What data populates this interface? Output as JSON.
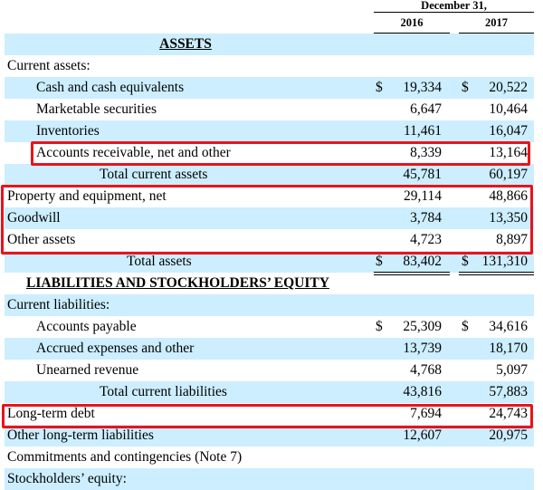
{
  "header": {
    "period": "December 31,",
    "years": [
      "2016",
      "2017"
    ]
  },
  "rows": [
    {
      "label": "ASSETS",
      "type": "section",
      "bg": "blue",
      "indent": "center"
    },
    {
      "label": "Current assets:",
      "bg": "white",
      "indent": 0
    },
    {
      "label": "Cash and cash equivalents",
      "bg": "blue",
      "indent": 1,
      "cur": true,
      "v2016": "19,334",
      "v2017": "20,522"
    },
    {
      "label": "Marketable securities",
      "bg": "white",
      "indent": 1,
      "v2016": "6,647",
      "v2017": "10,464"
    },
    {
      "label": "Inventories",
      "bg": "blue",
      "indent": 1,
      "v2016": "11,461",
      "v2017": "16,047"
    },
    {
      "label": "Accounts receivable, net and other",
      "bg": "white",
      "indent": 1,
      "v2016": "8,339",
      "v2017": "13,164",
      "underline": true
    },
    {
      "label": "Total current assets",
      "bg": "blue",
      "indent": 2,
      "v2016": "45,781",
      "v2017": "60,197"
    },
    {
      "label": "Property and equipment, net",
      "bg": "white",
      "indent": 0,
      "v2016": "29,114",
      "v2017": "48,866"
    },
    {
      "label": "Goodwill",
      "bg": "blue",
      "indent": 0,
      "v2016": "3,784",
      "v2017": "13,350"
    },
    {
      "label": "Other assets",
      "bg": "white",
      "indent": 0,
      "v2016": "4,723",
      "v2017": "8,897",
      "underline": true
    },
    {
      "label": "Total assets",
      "bg": "blue",
      "indent": 3,
      "cur": true,
      "v2016": "83,402",
      "v2017": "131,310",
      "double": true
    },
    {
      "label": "LIABILITIES AND STOCKHOLDERS’ EQUITY",
      "type": "section",
      "bg": "white",
      "indent": 1
    },
    {
      "label": "Current liabilities:",
      "bg": "blue",
      "indent": 0
    },
    {
      "label": "Accounts payable",
      "bg": "white",
      "indent": 1,
      "cur": true,
      "v2016": "25,309",
      "v2017": "34,616"
    },
    {
      "label": "Accrued expenses and other",
      "bg": "blue",
      "indent": 1,
      "v2016": "13,739",
      "v2017": "18,170"
    },
    {
      "label": "Unearned revenue",
      "bg": "white",
      "indent": 1,
      "v2016": "4,768",
      "v2017": "5,097",
      "underline": true
    },
    {
      "label": "Total current liabilities",
      "bg": "blue",
      "indent": 2,
      "v2016": "43,816",
      "v2017": "57,883"
    },
    {
      "label": "Long-term debt",
      "bg": "white",
      "indent": 0,
      "v2016": "7,694",
      "v2017": "24,743"
    },
    {
      "label": "Other long-term liabilities",
      "bg": "blue",
      "indent": 0,
      "v2016": "12,607",
      "v2017": "20,975"
    },
    {
      "label": "Commitments and contingencies (Note 7)",
      "bg": "white",
      "indent": 0
    },
    {
      "label": "Stockholders’ equity:",
      "bg": "blue",
      "indent": 0
    }
  ],
  "currency_symbol": "$",
  "highlight_color": "#e8141c",
  "row_bg_color": "#cceeff"
}
